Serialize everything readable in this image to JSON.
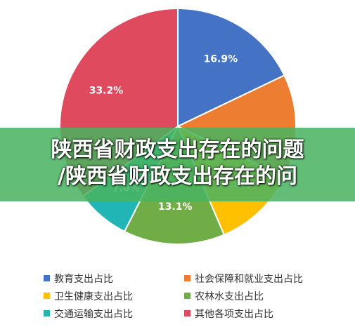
{
  "chart_data": {
    "type": "pie",
    "slices": [
      {
        "label": "教育支出占比",
        "value": 16.9,
        "value_label": "16.9%",
        "color": "#4472C4"
      },
      {
        "label": "社会保障和就业支出占比",
        "value": 13.5,
        "value_label": "",
        "color": "#ED7D31"
      },
      {
        "label": "卫生健康支出占比",
        "value": 10.8,
        "value_label": "10.8%",
        "color": "#FFC000"
      },
      {
        "label": "农林水支出占比",
        "value": 13.1,
        "value_label": "13.1%",
        "color": "#70AD47"
      },
      {
        "label": "交通运输支出占比",
        "value": 7.0,
        "value_label": "7.0%",
        "color": "#21B5B5"
      },
      {
        "label": "其他各项支出占比",
        "value": 33.2,
        "value_label": "33.2%",
        "color": "#E04A5F"
      }
    ],
    "legend_position": "bottom"
  },
  "banner": {
    "line1": "陕西省财政支出存在的问题",
    "line2": "/陕西省财政支出存在的问"
  }
}
